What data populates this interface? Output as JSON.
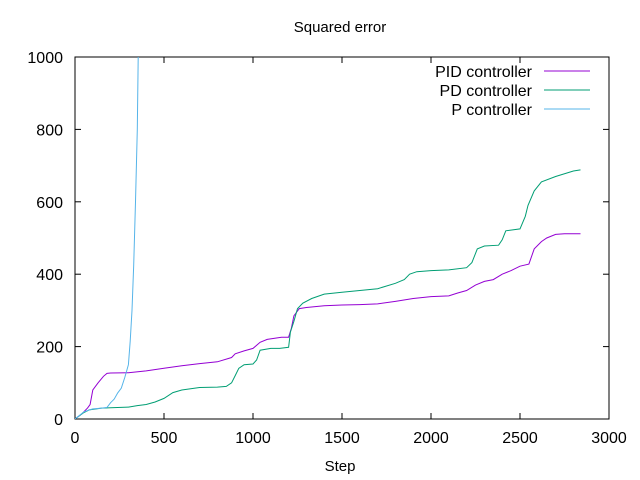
{
  "chart_data": {
    "type": "line",
    "title": "Squared error",
    "xlabel": "Step",
    "ylabel": "",
    "xlim": [
      0,
      3000
    ],
    "ylim": [
      0,
      1000
    ],
    "x_ticks": [
      0,
      500,
      1000,
      1500,
      2000,
      2500,
      3000
    ],
    "y_ticks": [
      0,
      200,
      400,
      600,
      800,
      1000
    ],
    "grid": false,
    "legend_position": "top-right",
    "series": [
      {
        "name": "PID controller",
        "color": "#9400d3",
        "points": [
          [
            0,
            0
          ],
          [
            40,
            15
          ],
          [
            70,
            30
          ],
          [
            85,
            40
          ],
          [
            100,
            80
          ],
          [
            130,
            100
          ],
          [
            160,
            118
          ],
          [
            180,
            126
          ],
          [
            200,
            127
          ],
          [
            300,
            128
          ],
          [
            400,
            133
          ],
          [
            500,
            140
          ],
          [
            600,
            147
          ],
          [
            700,
            153
          ],
          [
            800,
            158
          ],
          [
            880,
            170
          ],
          [
            900,
            180
          ],
          [
            950,
            188
          ],
          [
            1000,
            195
          ],
          [
            1040,
            212
          ],
          [
            1080,
            220
          ],
          [
            1160,
            226
          ],
          [
            1200,
            226
          ],
          [
            1215,
            250
          ],
          [
            1230,
            285
          ],
          [
            1260,
            305
          ],
          [
            1300,
            308
          ],
          [
            1400,
            313
          ],
          [
            1500,
            315
          ],
          [
            1600,
            316
          ],
          [
            1700,
            318
          ],
          [
            1800,
            325
          ],
          [
            1900,
            333
          ],
          [
            2000,
            338
          ],
          [
            2100,
            340
          ],
          [
            2150,
            348
          ],
          [
            2200,
            355
          ],
          [
            2250,
            370
          ],
          [
            2300,
            380
          ],
          [
            2350,
            385
          ],
          [
            2400,
            400
          ],
          [
            2450,
            410
          ],
          [
            2500,
            422
          ],
          [
            2550,
            428
          ],
          [
            2580,
            470
          ],
          [
            2620,
            490
          ],
          [
            2650,
            500
          ],
          [
            2700,
            510
          ],
          [
            2750,
            512
          ],
          [
            2840,
            512
          ]
        ]
      },
      {
        "name": "PD controller",
        "color": "#009e73",
        "points": [
          [
            0,
            0
          ],
          [
            50,
            18
          ],
          [
            80,
            25
          ],
          [
            150,
            30
          ],
          [
            200,
            31
          ],
          [
            300,
            33
          ],
          [
            350,
            37
          ],
          [
            400,
            40
          ],
          [
            450,
            47
          ],
          [
            500,
            57
          ],
          [
            550,
            73
          ],
          [
            600,
            80
          ],
          [
            700,
            87
          ],
          [
            800,
            88
          ],
          [
            850,
            90
          ],
          [
            880,
            100
          ],
          [
            900,
            120
          ],
          [
            920,
            140
          ],
          [
            950,
            150
          ],
          [
            1000,
            152
          ],
          [
            1020,
            163
          ],
          [
            1040,
            190
          ],
          [
            1100,
            195
          ],
          [
            1150,
            195
          ],
          [
            1200,
            198
          ],
          [
            1210,
            240
          ],
          [
            1230,
            270
          ],
          [
            1250,
            305
          ],
          [
            1280,
            320
          ],
          [
            1330,
            333
          ],
          [
            1400,
            345
          ],
          [
            1500,
            350
          ],
          [
            1600,
            355
          ],
          [
            1700,
            360
          ],
          [
            1800,
            375
          ],
          [
            1850,
            385
          ],
          [
            1880,
            400
          ],
          [
            1920,
            407
          ],
          [
            2000,
            410
          ],
          [
            2100,
            412
          ],
          [
            2200,
            418
          ],
          [
            2230,
            432
          ],
          [
            2260,
            470
          ],
          [
            2300,
            478
          ],
          [
            2380,
            480
          ],
          [
            2400,
            495
          ],
          [
            2420,
            520
          ],
          [
            2500,
            525
          ],
          [
            2530,
            560
          ],
          [
            2545,
            590
          ],
          [
            2580,
            630
          ],
          [
            2620,
            655
          ],
          [
            2700,
            670
          ],
          [
            2800,
            685
          ],
          [
            2840,
            688
          ]
        ]
      },
      {
        "name": "P controller",
        "color": "#56b4e9",
        "points": [
          [
            0,
            0
          ],
          [
            50,
            20
          ],
          [
            100,
            28
          ],
          [
            150,
            30
          ],
          [
            180,
            32
          ],
          [
            200,
            45
          ],
          [
            220,
            55
          ],
          [
            240,
            72
          ],
          [
            260,
            85
          ],
          [
            280,
            115
          ],
          [
            300,
            150
          ],
          [
            310,
            215
          ],
          [
            320,
            300
          ],
          [
            330,
            425
          ],
          [
            340,
            600
          ],
          [
            350,
            800
          ],
          [
            355,
            1000
          ]
        ]
      }
    ]
  }
}
